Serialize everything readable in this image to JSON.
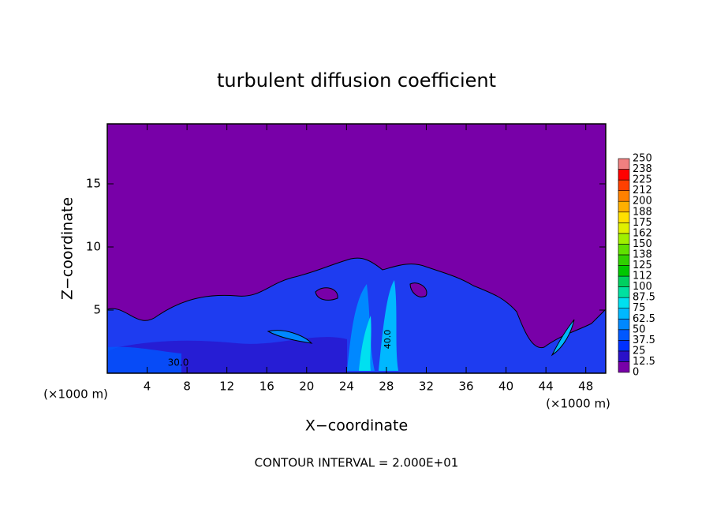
{
  "chart_data": {
    "type": "contour",
    "title": "turbulent diffusion coefficient",
    "x_label": "X−coordinate",
    "y_label": "Z−coordinate",
    "x_unit_label": "(×1000 m)",
    "y_unit_label": "(×1000 m)",
    "footnote": "CONTOUR INTERVAL = 2.000E+01",
    "annotations": [
      "30.0",
      "40.0"
    ],
    "xlim": [
      0,
      50
    ],
    "ylim": [
      0,
      20
    ],
    "xticks": [
      4,
      8,
      12,
      16,
      20,
      24,
      28,
      32,
      36,
      40,
      44,
      48
    ],
    "yticks": [
      5,
      10,
      15
    ],
    "colorbar": {
      "levels": [
        0,
        12.5,
        25,
        37.5,
        50,
        62.5,
        75,
        87.5,
        100,
        112,
        125,
        138,
        150,
        162,
        175,
        188,
        200,
        212,
        225,
        238,
        250
      ],
      "colors": [
        "#7800a8",
        "#2a10c8",
        "#0030ff",
        "#0058ff",
        "#0088ff",
        "#00b8ff",
        "#00e0f0",
        "#00e0a0",
        "#00d060",
        "#00c800",
        "#30d000",
        "#60e000",
        "#a0f000",
        "#e0f000",
        "#ffe000",
        "#ffb000",
        "#ff8000",
        "#ff4000",
        "#ff0000",
        "#f08080"
      ]
    }
  }
}
